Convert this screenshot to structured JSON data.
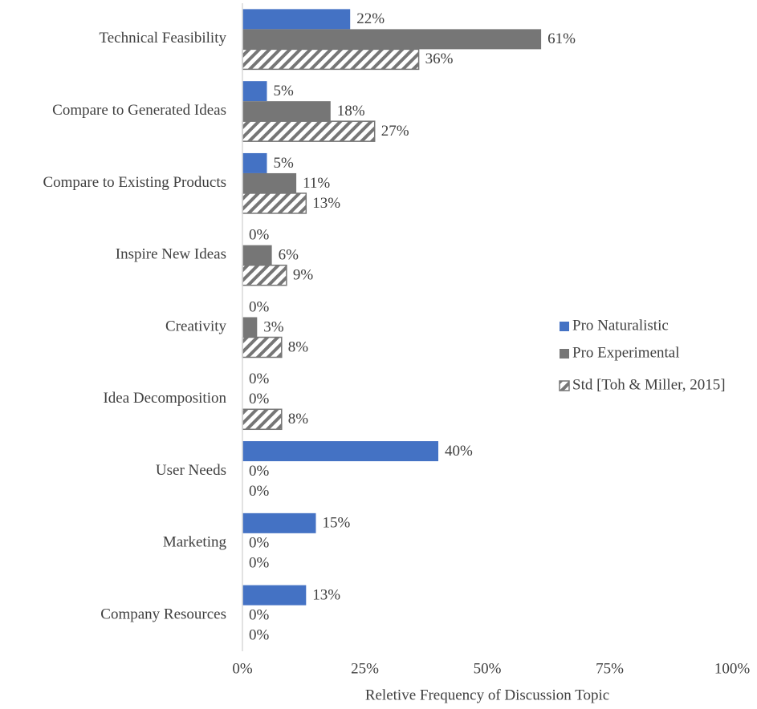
{
  "chart_data": {
    "type": "hbar",
    "xlabel": "Reletive Frequency of Discussion Topic",
    "categories": [
      "Technical Feasibility",
      "Compare to Generated Ideas",
      "Compare to Existing Products",
      "Inspire New Ideas",
      "Creativity",
      "Idea Decomposition",
      "User Needs",
      "Marketing",
      "Company Resources"
    ],
    "series": [
      {
        "name": "Pro Naturalistic",
        "color": "#4472c4",
        "pattern": "solid",
        "values": [
          22,
          5,
          5,
          0,
          0,
          0,
          40,
          15,
          13
        ],
        "value_labels": [
          "22%",
          "5%",
          "5%",
          "0%",
          "0%",
          "0%",
          "40%",
          "15%",
          "13%"
        ]
      },
      {
        "name": "Pro Experimental",
        "color": "#767676",
        "pattern": "solid",
        "values": [
          61,
          18,
          11,
          6,
          3,
          0,
          0,
          0,
          0
        ],
        "value_labels": [
          "61%",
          "18%",
          "11%",
          "6%",
          "3%",
          "0%",
          "0%",
          "0%",
          "0%"
        ]
      },
      {
        "name": "Std [Toh & Miller, 2015]",
        "color": "#767676",
        "pattern": "hatch",
        "values": [
          36,
          27,
          13,
          9,
          8,
          8,
          0,
          0,
          0
        ],
        "value_labels": [
          "36%",
          "27%",
          "13%",
          "9%",
          "8%",
          "8%",
          "0%",
          "0%",
          "0%"
        ]
      }
    ],
    "xlim": [
      0,
      100
    ],
    "xticks": [
      {
        "value": 0,
        "label": "0%"
      },
      {
        "value": 25,
        "label": "25%"
      },
      {
        "value": 50,
        "label": "50%"
      },
      {
        "value": 75,
        "label": "75%"
      },
      {
        "value": 100,
        "label": "100%"
      }
    ],
    "grid": false,
    "legend": "right"
  }
}
